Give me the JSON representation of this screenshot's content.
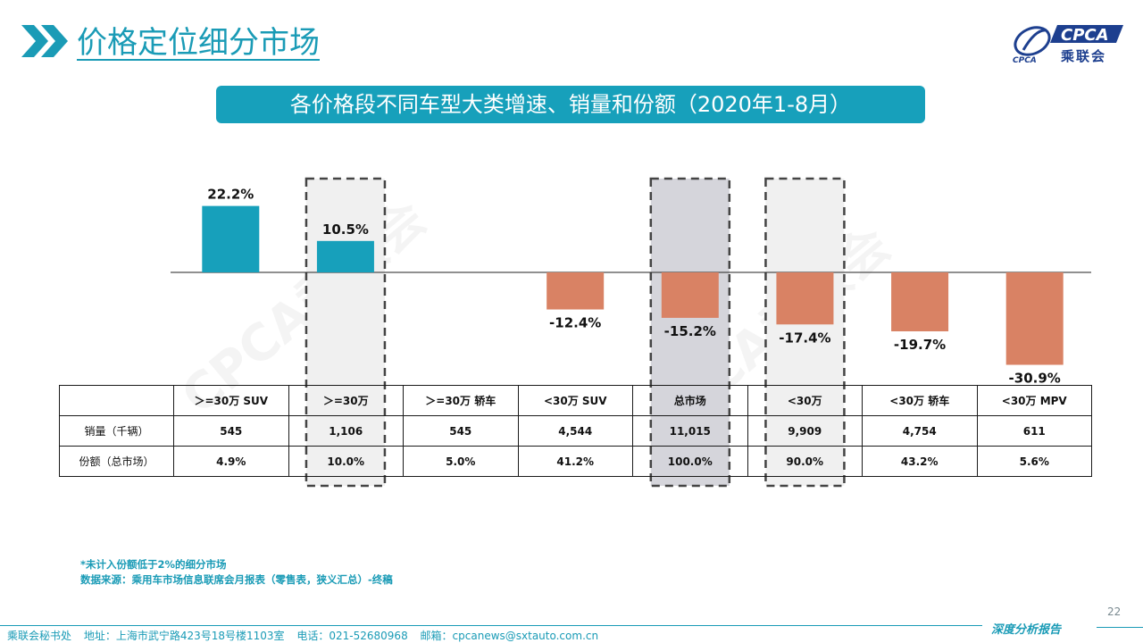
{
  "header": {
    "title": "价格定位细分市场",
    "logo_name": "CPCA",
    "logo_subtext": "乘联会",
    "logo_small": "CPCA"
  },
  "banner": {
    "text": "各价格段不同车型大类增速、销量和份额（2020年1-8月）"
  },
  "chart_data": {
    "type": "bar",
    "title": "各价格段不同车型大类增速、销量和份额（2020年1-8月）",
    "categories": [
      "＞=30万 SUV",
      "＞=30万",
      "＞=30万 轿车",
      "<30万 SUV",
      "总市场",
      "<30万",
      "<30万 轿车",
      "<30万 MPV"
    ],
    "values": [
      22.2,
      10.5,
      null,
      -12.4,
      -15.2,
      -17.4,
      -19.7,
      -30.9
    ],
    "value_labels": [
      "22.2%",
      "10.5%",
      "",
      "-12.4%",
      "-15.2%",
      "-17.4%",
      "-19.7%",
      "-30.9%"
    ],
    "unit": "%",
    "positive_color": "#17a0bb",
    "negative_color": "#d98264",
    "highlighted_categories": [
      "＞=30万",
      "总市场",
      "<30万"
    ],
    "grid": false,
    "legend": "none"
  },
  "table": {
    "rows": [
      {
        "label": "销量（千辆）",
        "cells": [
          "545",
          "1,106",
          "545",
          "4,544",
          "11,015",
          "9,909",
          "4,754",
          "611"
        ]
      },
      {
        "label": "份额（总市场）",
        "cells": [
          "4.9%",
          "10.0%",
          "5.0%",
          "41.2%",
          "100.0%",
          "90.0%",
          "43.2%",
          "5.6%"
        ]
      }
    ]
  },
  "watermarks": [
    "CPCA乘联会",
    "CPCA乘联会"
  ],
  "notes": {
    "line1": "*未计入份额低于2%的细分市场",
    "line2": "数据来源：乘用车市场信息联席会月报表（零售表，狭义汇总）-终稿"
  },
  "footer": {
    "org": "乘联会秘书处",
    "address": "地址：上海市武宁路423号18号楼1103室",
    "phone": "电话：021-52680968",
    "email": "邮箱：cpcanews@sxtauto.com.cn",
    "report_tag": "深度分析报告",
    "page_number": "22"
  }
}
